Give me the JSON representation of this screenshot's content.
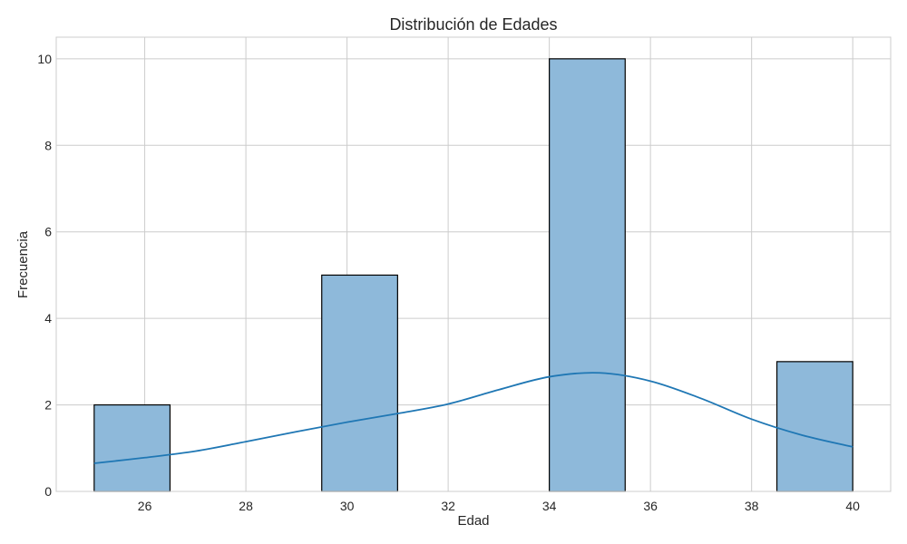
{
  "chart_data": {
    "type": "histogram",
    "title": "Distribución de Edades",
    "xlabel": "Edad",
    "ylabel": "Frecuencia",
    "xlim": [
      24.25,
      40.75
    ],
    "ylim": [
      0,
      10.5
    ],
    "grid": true,
    "xticks": [
      26,
      28,
      30,
      32,
      34,
      36,
      38,
      40
    ],
    "yticks": [
      0,
      2,
      4,
      6,
      8,
      10
    ],
    "bins": [
      {
        "x0": 25.0,
        "x1": 26.5,
        "count": 2
      },
      {
        "x0": 26.5,
        "x1": 28.0,
        "count": 0
      },
      {
        "x0": 28.0,
        "x1": 29.5,
        "count": 0
      },
      {
        "x0": 29.5,
        "x1": 31.0,
        "count": 5
      },
      {
        "x0": 31.0,
        "x1": 32.5,
        "count": 0
      },
      {
        "x0": 32.5,
        "x1": 34.0,
        "count": 0
      },
      {
        "x0": 34.0,
        "x1": 35.5,
        "count": 10
      },
      {
        "x0": 35.5,
        "x1": 37.0,
        "count": 0
      },
      {
        "x0": 37.0,
        "x1": 38.5,
        "count": 0
      },
      {
        "x0": 38.5,
        "x1": 40.0,
        "count": 3
      }
    ],
    "kde": {
      "color": "#1f77b4",
      "x": [
        25,
        26,
        27,
        28,
        29,
        30,
        31,
        32,
        33,
        34,
        35,
        36,
        37,
        38,
        39,
        40
      ],
      "y": [
        0.65,
        0.78,
        0.93,
        1.15,
        1.38,
        1.6,
        1.8,
        2.02,
        2.35,
        2.65,
        2.74,
        2.55,
        2.15,
        1.67,
        1.3,
        1.03
      ]
    },
    "bar_color": "#8eb9da",
    "edge_color": "#000000"
  }
}
